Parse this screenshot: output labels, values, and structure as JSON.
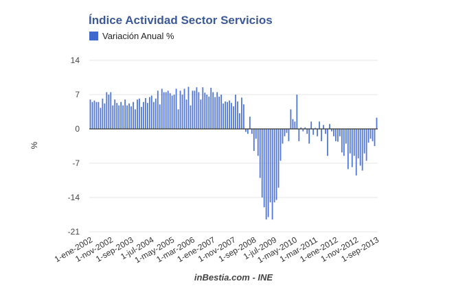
{
  "chart_data": {
    "type": "bar",
    "title": "Índice Actividad Sector Servicios",
    "ylabel": "%",
    "xlabel": "",
    "ylim": [
      -21,
      14
    ],
    "yticks": [
      14,
      7,
      0,
      -7,
      -14,
      -21
    ],
    "grid": true,
    "legend_position": "top-left",
    "bar_color": "#3d68d0",
    "tick_labels": [
      "1-ene-2002",
      "1-nov-2002",
      "1-sep-2003",
      "1-jul-2004",
      "1-may-2005",
      "1-mar-2006",
      "1-ene-2007",
      "1-nov-2007",
      "1-sep-2008",
      "1-jul-2009",
      "1-may-2010",
      "1-mar-2011",
      "1-ene-2012",
      "1-nov-2012",
      "1-sep-2013"
    ],
    "tick_every_months": 10,
    "start": "2002-01",
    "series": [
      {
        "name": "Variación Anual %",
        "values": [
          6.0,
          5.5,
          5.8,
          5.5,
          5.5,
          4.3,
          6.2,
          5.2,
          7.5,
          7.0,
          7.5,
          4.8,
          6.0,
          5.3,
          4.8,
          5.5,
          4.8,
          6.0,
          4.8,
          5.2,
          4.6,
          5.5,
          4.0,
          6.0,
          6.2,
          4.5,
          5.5,
          6.3,
          5.3,
          6.5,
          6.8,
          5.5,
          6.2,
          7.8,
          5.0,
          8.2,
          7.5,
          7.5,
          7.8,
          7.3,
          6.8,
          7.0,
          8.2,
          4.0,
          7.8,
          7.0,
          8.2,
          6.0,
          8.6,
          4.8,
          7.8,
          7.8,
          8.5,
          7.5,
          6.0,
          8.5,
          7.4,
          7.0,
          6.6,
          8.4,
          7.5,
          6.5,
          7.5,
          6.6,
          7.0,
          5.2,
          5.6,
          5.5,
          5.8,
          5.3,
          4.6,
          7.0,
          5.6,
          3.2,
          6.4,
          5.0,
          -0.6,
          -1.0,
          2.5,
          -1.0,
          -4.5,
          -2.0,
          -5.5,
          -10.0,
          -14.0,
          -16.0,
          -18.5,
          -18.0,
          -15.0,
          -18.5,
          -15.0,
          -14.5,
          -12.0,
          -6.5,
          -3.0,
          -1.5,
          -0.8,
          -2.5,
          4.0,
          2.0,
          1.5,
          7.0,
          -2.5,
          0.3,
          -0.5,
          0.3,
          -1.0,
          -3.0,
          1.5,
          -1.2,
          0.2,
          -1.5,
          1.5,
          -2.5,
          0.8,
          -1.0,
          -5.5,
          1.0,
          -0.5,
          -1.5,
          -2.5,
          -2.6,
          -1.5,
          -4.8,
          -5.5,
          -3.0,
          -8.2,
          -5.0,
          -7.8,
          -5.5,
          -9.5,
          -6.0,
          -7.5,
          -8.5,
          -5.0,
          -6.5,
          -2.8,
          -2.0,
          -2.5,
          -3.5,
          2.3
        ]
      }
    ]
  },
  "footer": "inBestia.com - INE"
}
